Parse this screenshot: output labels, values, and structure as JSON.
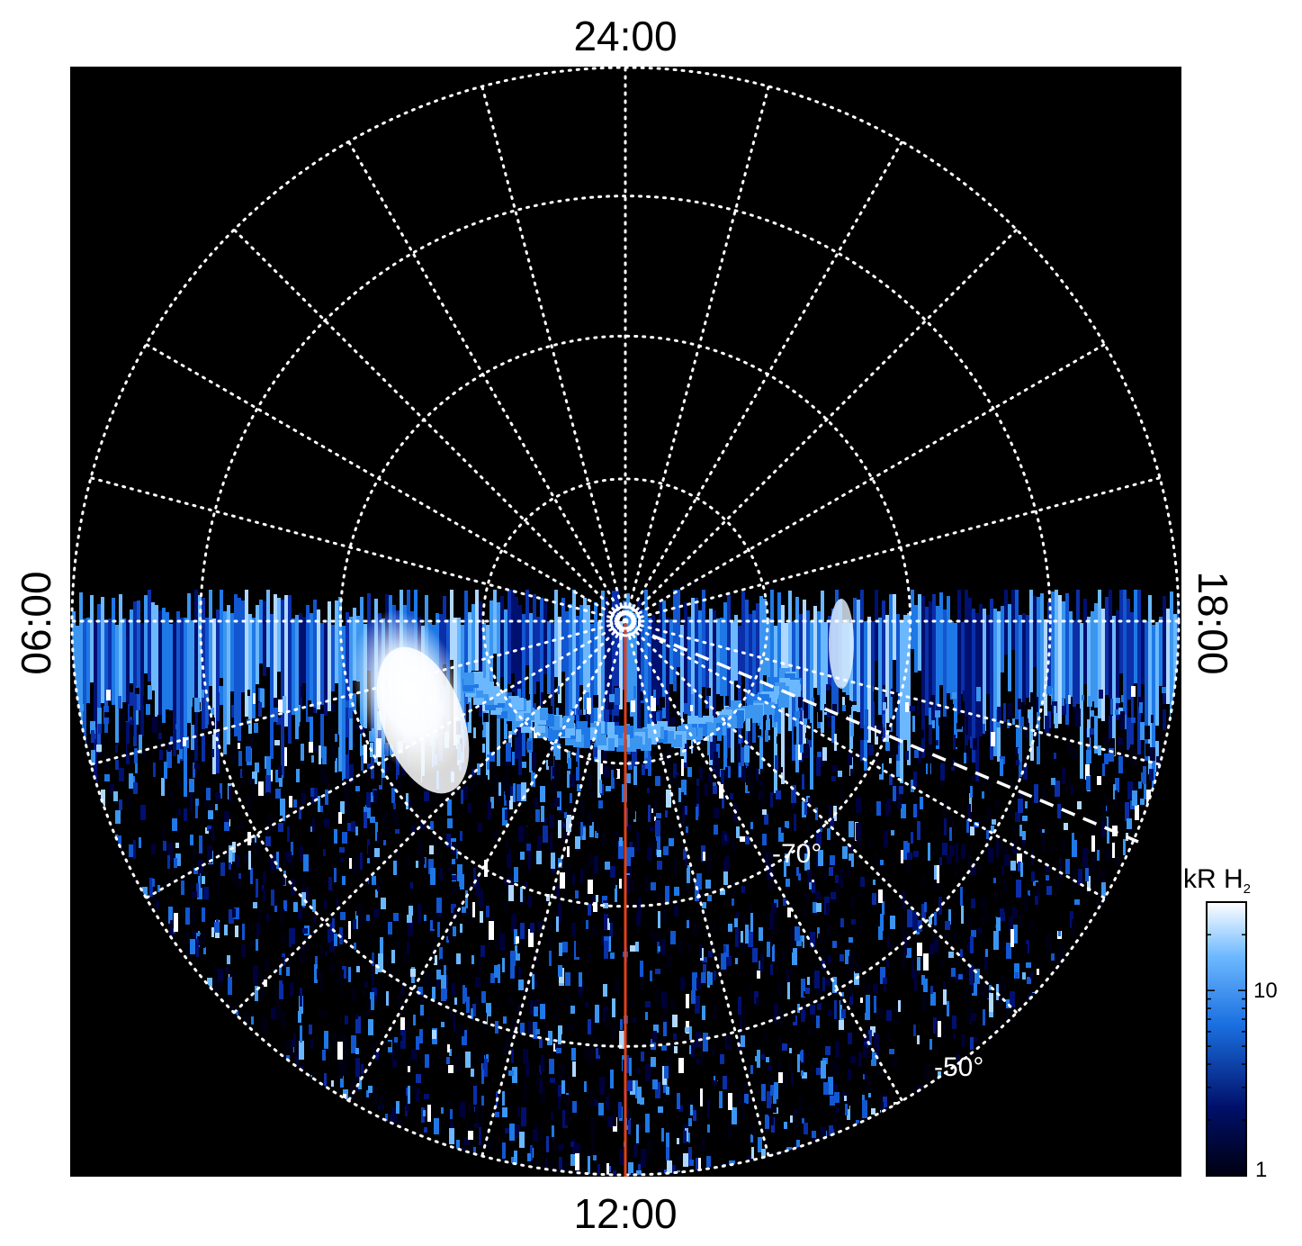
{
  "plot": {
    "local_time_labels": {
      "top": "24:00",
      "bottom": "12:00",
      "left": "06:00",
      "right": "18:00"
    },
    "latitude_labels": [
      {
        "text": "-70°",
        "value": -70
      },
      {
        "text": "-50°",
        "value": -50
      }
    ],
    "colors": {
      "background": "#000000",
      "grid": "#ffffff",
      "meridian_line": "#e0401a",
      "emission_low": "#00002a",
      "emission_mid": "#1e78e6",
      "emission_high": "#ffffff"
    }
  },
  "colorbar": {
    "title": "kR H",
    "title_subscript": "2",
    "tick_labels": [
      "10",
      "1"
    ],
    "tick_values": [
      10,
      1
    ],
    "scale": "log"
  }
}
